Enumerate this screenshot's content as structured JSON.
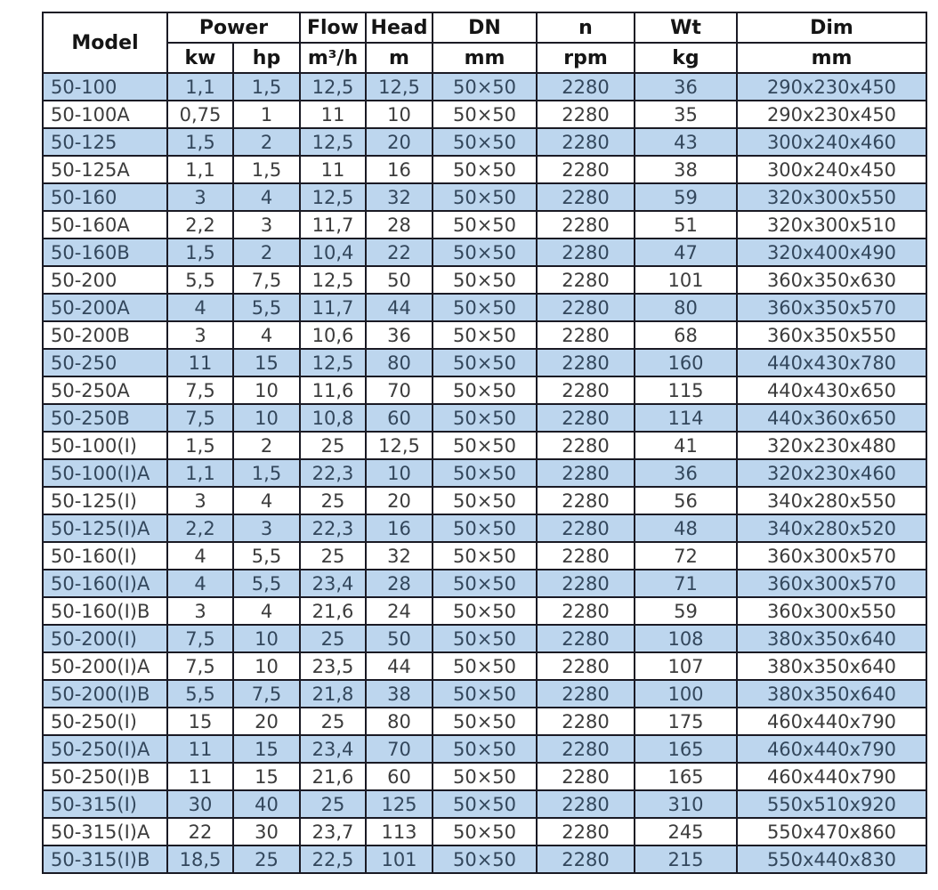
{
  "table": {
    "header": {
      "row1": [
        "Model",
        "Power",
        "Flow",
        "Head",
        "DN",
        "n",
        "Wt",
        "Dim"
      ],
      "row2": [
        "kw",
        "hp",
        "m³/h",
        "m",
        "mm",
        "rpm",
        "kg",
        "mm"
      ]
    },
    "col_keys": [
      "model",
      "power-kw",
      "power-hp",
      "flow",
      "head",
      "dn",
      "rpm",
      "weight",
      "dim"
    ],
    "rows": [
      [
        "50-100",
        "1,1",
        "1,5",
        "12,5",
        "12,5",
        "50×50",
        "2280",
        "36",
        "290x230x450"
      ],
      [
        "50-100A",
        "0,75",
        "1",
        "11",
        "10",
        "50×50",
        "2280",
        "35",
        "290x230x450"
      ],
      [
        "50-125",
        "1,5",
        "2",
        "12,5",
        "20",
        "50×50",
        "2280",
        "43",
        "300x240x460"
      ],
      [
        "50-125A",
        "1,1",
        "1,5",
        "11",
        "16",
        "50×50",
        "2280",
        "38",
        "300x240x450"
      ],
      [
        "50-160",
        "3",
        "4",
        "12,5",
        "32",
        "50×50",
        "2280",
        "59",
        "320x300x550"
      ],
      [
        "50-160A",
        "2,2",
        "3",
        "11,7",
        "28",
        "50×50",
        "2280",
        "51",
        "320x300x510"
      ],
      [
        "50-160B",
        "1,5",
        "2",
        "10,4",
        "22",
        "50×50",
        "2280",
        "47",
        "320x400x490"
      ],
      [
        "50-200",
        "5,5",
        "7,5",
        "12,5",
        "50",
        "50×50",
        "2280",
        "101",
        "360x350x630"
      ],
      [
        "50-200A",
        "4",
        "5,5",
        "11,7",
        "44",
        "50×50",
        "2280",
        "80",
        "360x350x570"
      ],
      [
        "50-200B",
        "3",
        "4",
        "10,6",
        "36",
        "50×50",
        "2280",
        "68",
        "360x350x550"
      ],
      [
        "50-250",
        "11",
        "15",
        "12,5",
        "80",
        "50×50",
        "2280",
        "160",
        "440x430x780"
      ],
      [
        "50-250A",
        "7,5",
        "10",
        "11,6",
        "70",
        "50×50",
        "2280",
        "115",
        "440x430x650"
      ],
      [
        "50-250B",
        "7,5",
        "10",
        "10,8",
        "60",
        "50×50",
        "2280",
        "114",
        "440x360x650"
      ],
      [
        "50-100(I)",
        "1,5",
        "2",
        "25",
        "12,5",
        "50×50",
        "2280",
        "41",
        "320x230x480"
      ],
      [
        "50-100(I)A",
        "1,1",
        "1,5",
        "22,3",
        "10",
        "50×50",
        "2280",
        "36",
        "320x230x460"
      ],
      [
        "50-125(I)",
        "3",
        "4",
        "25",
        "20",
        "50×50",
        "2280",
        "56",
        "340x280x550"
      ],
      [
        "50-125(I)A",
        "2,2",
        "3",
        "22,3",
        "16",
        "50×50",
        "2280",
        "48",
        "340x280x520"
      ],
      [
        "50-160(I)",
        "4",
        "5,5",
        "25",
        "32",
        "50×50",
        "2280",
        "72",
        "360x300x570"
      ],
      [
        "50-160(I)A",
        "4",
        "5,5",
        "23,4",
        "28",
        "50×50",
        "2280",
        "71",
        "360x300x570"
      ],
      [
        "50-160(I)B",
        "3",
        "4",
        "21,6",
        "24",
        "50×50",
        "2280",
        "59",
        "360x300x550"
      ],
      [
        "50-200(I)",
        "7,5",
        "10",
        "25",
        "50",
        "50×50",
        "2280",
        "108",
        "380x350x640"
      ],
      [
        "50-200(I)A",
        "7,5",
        "10",
        "23,5",
        "44",
        "50×50",
        "2280",
        "107",
        "380x350x640"
      ],
      [
        "50-200(I)B",
        "5,5",
        "7,5",
        "21,8",
        "38",
        "50×50",
        "2280",
        "100",
        "380x350x640"
      ],
      [
        "50-250(I)",
        "15",
        "20",
        "25",
        "80",
        "50×50",
        "2280",
        "175",
        "460x440x790"
      ],
      [
        "50-250(I)A",
        "11",
        "15",
        "23,4",
        "70",
        "50×50",
        "2280",
        "165",
        "460x440x790"
      ],
      [
        "50-250(I)B",
        "11",
        "15",
        "21,6",
        "60",
        "50×50",
        "2280",
        "165",
        "460x440x790"
      ],
      [
        "50-315(I)",
        "30",
        "40",
        "25",
        "125",
        "50×50",
        "2280",
        "310",
        "550x510x920"
      ],
      [
        "50-315(I)A",
        "22",
        "30",
        "23,7",
        "113",
        "50×50",
        "2280",
        "245",
        "550x470x860"
      ],
      [
        "50-315(I)B",
        "18,5",
        "25",
        "22,5",
        "101",
        "50×50",
        "2280",
        "215",
        "550x440x830"
      ]
    ]
  },
  "colors": {
    "row_highlight": "#bdd6ee",
    "row_text": "#33475c",
    "body_text": "#3c3c3c",
    "border": "#1a1a24",
    "header_text": "#151515",
    "page_bg": "#ffffff"
  }
}
